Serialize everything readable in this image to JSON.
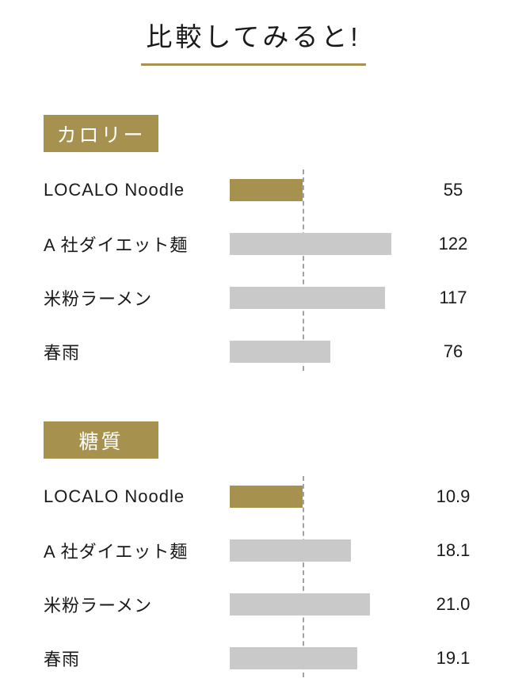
{
  "page": {
    "title": "比較してみると!"
  },
  "colors": {
    "accent": "#a6914e",
    "bar_gray": "#c9c9c9",
    "text": "#1a1a1a",
    "dash": "#a3a3a3"
  },
  "chart_data": [
    {
      "type": "bar",
      "orientation": "horizontal",
      "title": "カロリー",
      "categories": [
        "LOCALO Noodle",
        "A 社ダイエット麺",
        "米粉ラーメン",
        "春雨"
      ],
      "values": [
        55,
        122,
        117,
        76
      ],
      "value_labels": [
        "55",
        "122",
        "117",
        "76"
      ],
      "highlight_index": 0,
      "highlight_category": "LOCALO Noodle",
      "reference_line": "dashed vertical line aligned with LOCALO Noodle bar end",
      "legend": "none",
      "grid": "off"
    },
    {
      "type": "bar",
      "orientation": "horizontal",
      "title": "糖質",
      "categories": [
        "LOCALO Noodle",
        "A 社ダイエット麺",
        "米粉ラーメン",
        "春雨"
      ],
      "values": [
        10.9,
        18.1,
        21.0,
        19.1
      ],
      "value_labels": [
        "10.9",
        "18.1",
        "21.0",
        "19.1"
      ],
      "highlight_index": 0,
      "highlight_category": "LOCALO Noodle",
      "reference_line": "dashed vertical line aligned with LOCALO Noodle bar end",
      "legend": "none",
      "grid": "off"
    }
  ]
}
